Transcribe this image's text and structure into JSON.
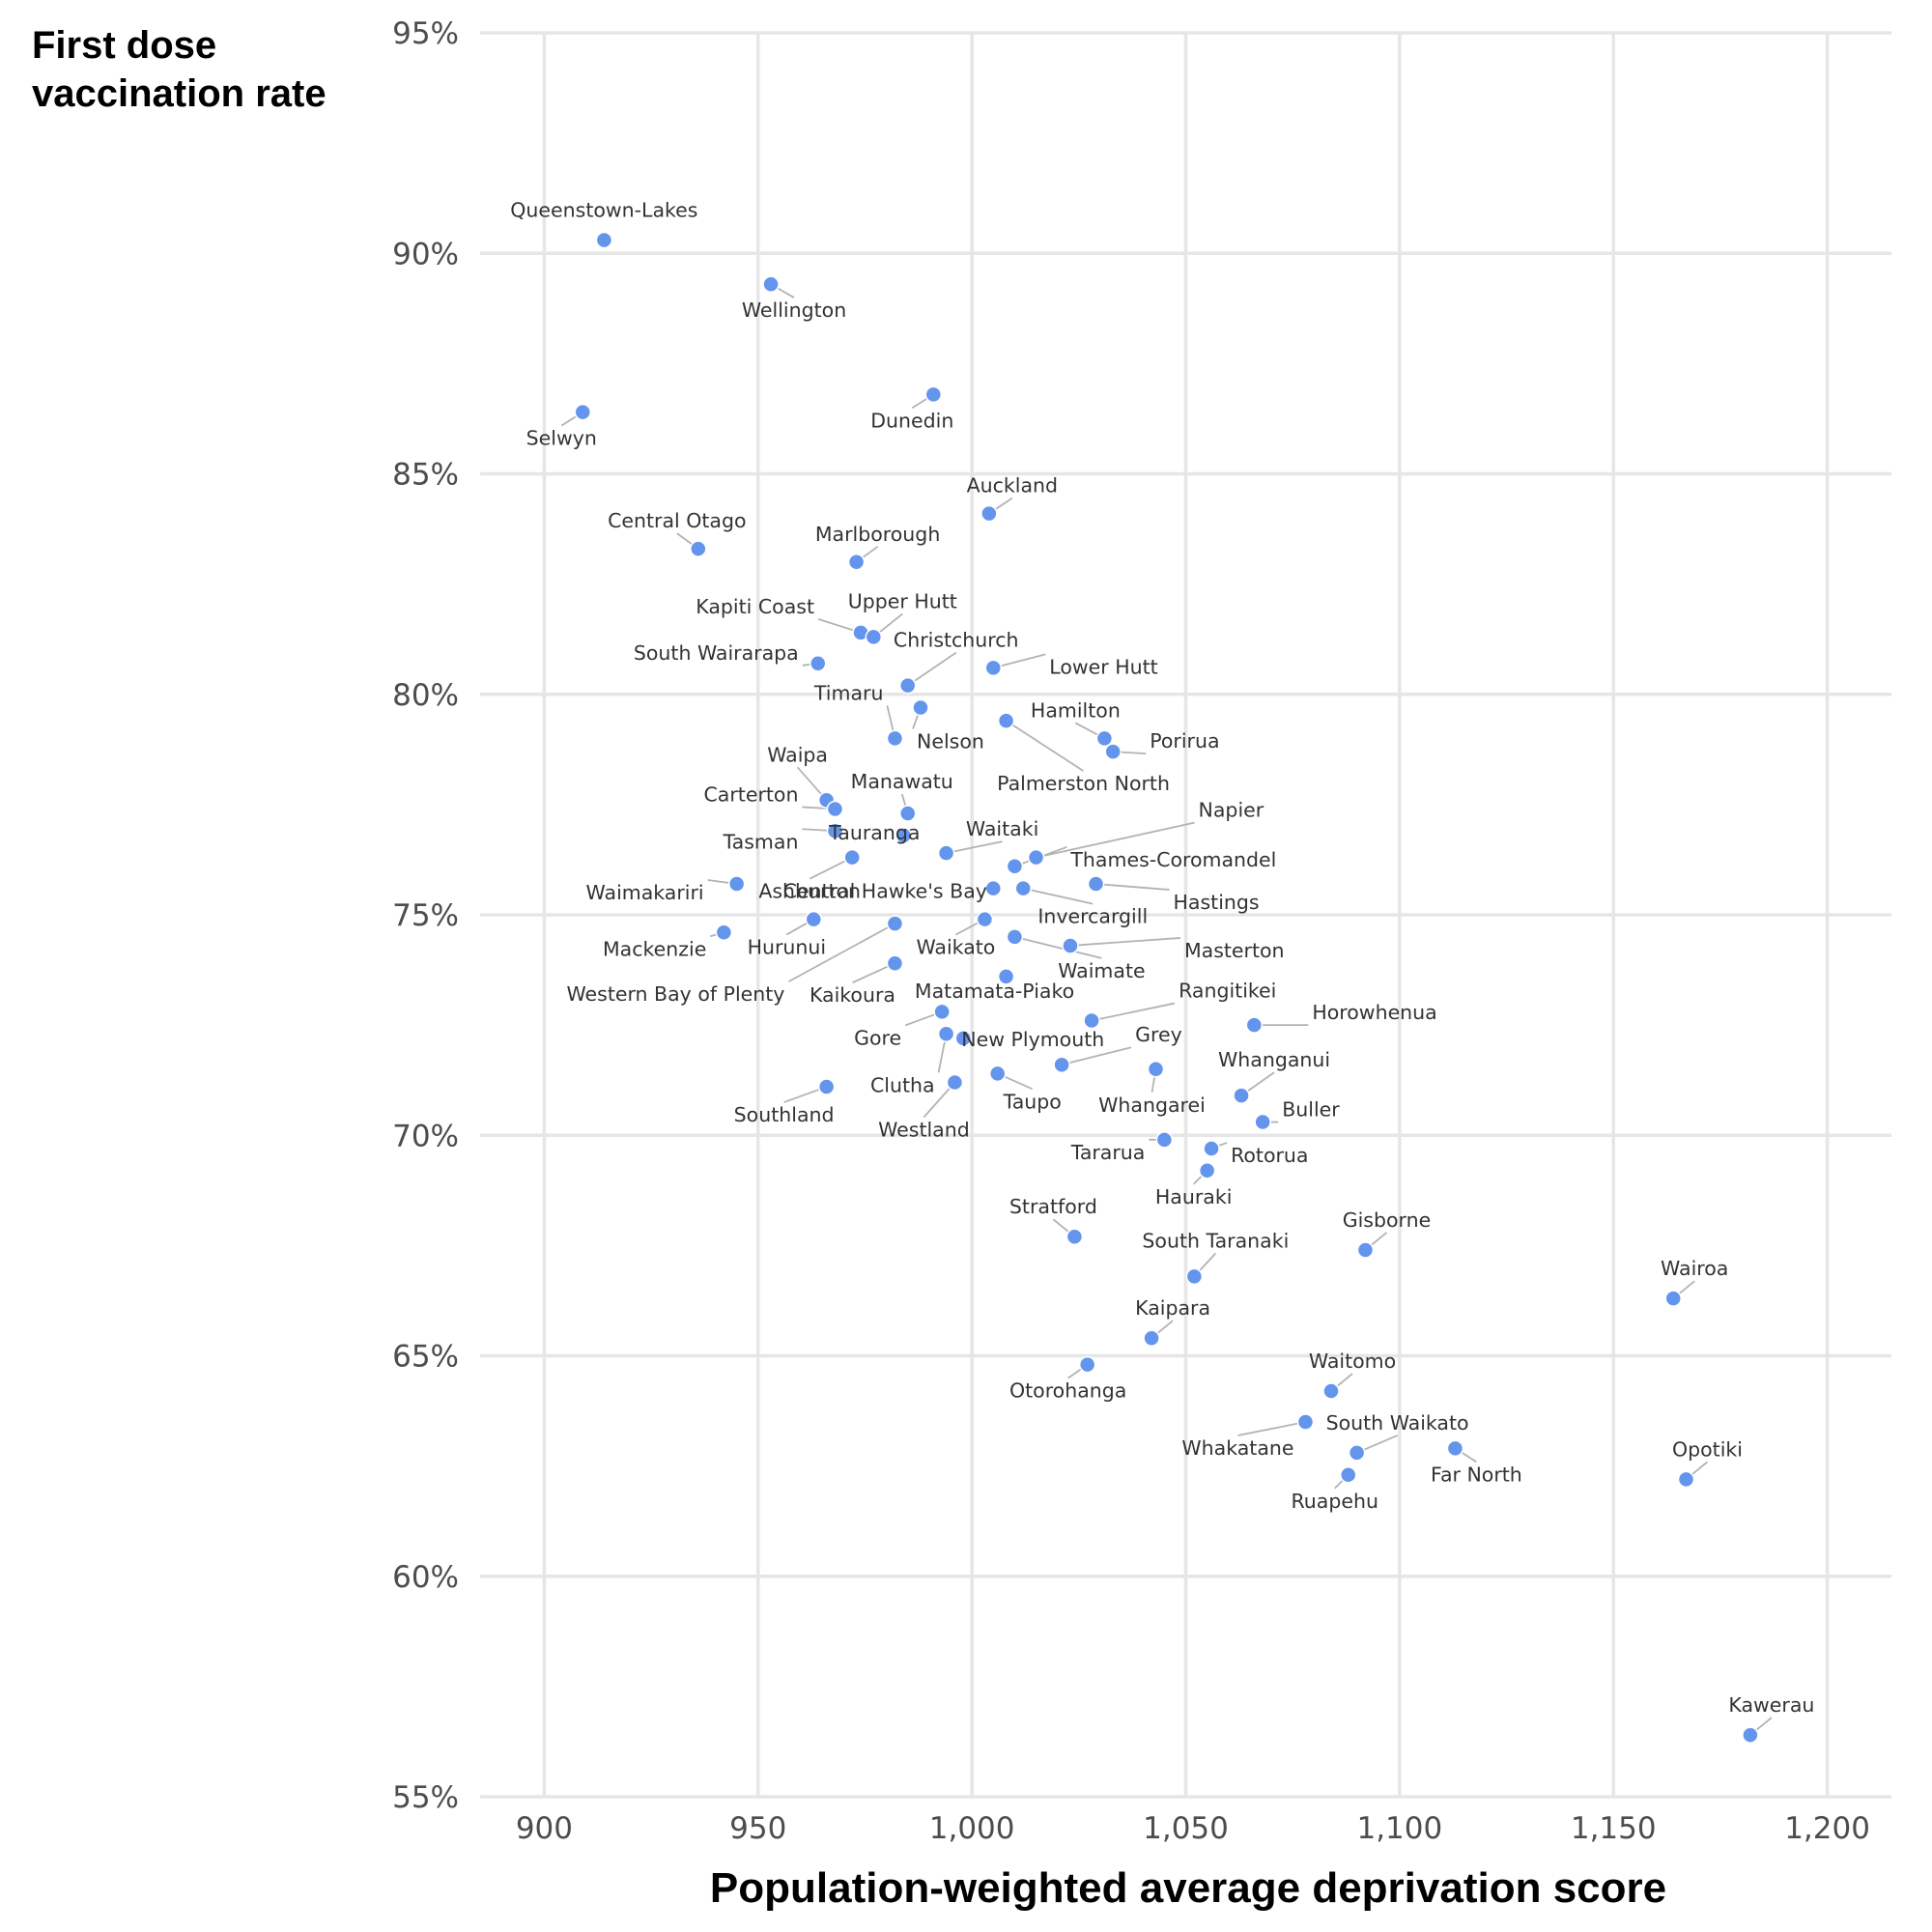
{
  "chart_data": {
    "type": "scatter",
    "title": "",
    "ylabel": "First dose\nvaccination rate",
    "xlabel": "Population-weighted average deprivation score",
    "xlim": [
      885,
      1215
    ],
    "ylim": [
      55,
      95
    ],
    "x_ticks": [
      900,
      950,
      1000,
      1050,
      1100,
      1150,
      1200
    ],
    "x_tick_labels": [
      "900",
      "950",
      "1,000",
      "1,050",
      "1,100",
      "1,150",
      "1,200"
    ],
    "y_ticks": [
      55,
      60,
      65,
      70,
      75,
      80,
      85,
      90,
      95
    ],
    "y_tick_labels": [
      "55%",
      "60%",
      "65%",
      "70%",
      "75%",
      "80%",
      "85%",
      "90%",
      "95%"
    ],
    "grid": true,
    "point_color": "#6495ed",
    "points": [
      {
        "name": "Queenstown-Lakes",
        "x": 914,
        "y": 90.3
      },
      {
        "name": "Wellington",
        "x": 953,
        "y": 89.3
      },
      {
        "name": "Selwyn",
        "x": 909,
        "y": 86.4
      },
      {
        "name": "Dunedin",
        "x": 991,
        "y": 86.8
      },
      {
        "name": "Auckland",
        "x": 1004,
        "y": 84.1
      },
      {
        "name": "Central Otago",
        "x": 936,
        "y": 83.3
      },
      {
        "name": "Marlborough",
        "x": 973,
        "y": 83.0
      },
      {
        "name": "Kapiti Coast",
        "x": 974,
        "y": 81.4
      },
      {
        "name": "Upper Hutt",
        "x": 977,
        "y": 81.3
      },
      {
        "name": "South Wairarapa",
        "x": 964,
        "y": 80.7
      },
      {
        "name": "Christchurch",
        "x": 985,
        "y": 80.2
      },
      {
        "name": "Lower Hutt",
        "x": 1005,
        "y": 80.6
      },
      {
        "name": "Timaru",
        "x": 982,
        "y": 79.0
      },
      {
        "name": "Nelson",
        "x": 988,
        "y": 79.7
      },
      {
        "name": "Hamilton",
        "x": 1031,
        "y": 79.0
      },
      {
        "name": "Porirua",
        "x": 1033,
        "y": 78.7
      },
      {
        "name": "Palmerston North",
        "x": 1008,
        "y": 79.4
      },
      {
        "name": "Waipa",
        "x": 966,
        "y": 77.6
      },
      {
        "name": "Carterton",
        "x": 968,
        "y": 77.4
      },
      {
        "name": "Manawatu",
        "x": 985,
        "y": 77.3
      },
      {
        "name": "Tauranga",
        "x": 984,
        "y": 76.8
      },
      {
        "name": "Tasman",
        "x": 968,
        "y": 76.9
      },
      {
        "name": "Waitaki",
        "x": 994,
        "y": 76.4
      },
      {
        "name": "Napier",
        "x": 1015,
        "y": 76.3
      },
      {
        "name": "Thames-Coromandel",
        "x": 1010,
        "y": 76.1
      },
      {
        "name": "Waimakariri",
        "x": 945,
        "y": 75.7
      },
      {
        "name": "Ashburton",
        "x": 972,
        "y": 76.3
      },
      {
        "name": "Central Hawke's Bay",
        "x": 1005,
        "y": 75.6
      },
      {
        "name": "Hastings",
        "x": 1029,
        "y": 75.7
      },
      {
        "name": "Invercargill",
        "x": 1012,
        "y": 75.6
      },
      {
        "name": "Mackenzie",
        "x": 942,
        "y": 74.6
      },
      {
        "name": "Hurunui",
        "x": 963,
        "y": 74.9
      },
      {
        "name": "Waikato",
        "x": 1003,
        "y": 74.9
      },
      {
        "name": "Masterton",
        "x": 1023,
        "y": 74.3
      },
      {
        "name": "Waimate",
        "x": 1010,
        "y": 74.5
      },
      {
        "name": "Western Bay of Plenty",
        "x": 982,
        "y": 74.8
      },
      {
        "name": "Kaikoura",
        "x": 982,
        "y": 73.9
      },
      {
        "name": "Matamata-Piako",
        "x": 1008,
        "y": 73.6
      },
      {
        "name": "Rangitikei",
        "x": 1028,
        "y": 72.6
      },
      {
        "name": "Horowhenua",
        "x": 1066,
        "y": 72.5
      },
      {
        "name": "Gore",
        "x": 993,
        "y": 72.8
      },
      {
        "name": "New Plymouth",
        "x": 998,
        "y": 72.2
      },
      {
        "name": "Clutha",
        "x": 994,
        "y": 72.3
      },
      {
        "name": "Grey",
        "x": 1021,
        "y": 71.6
      },
      {
        "name": "Whanganui",
        "x": 1063,
        "y": 70.9
      },
      {
        "name": "Southland",
        "x": 966,
        "y": 71.1
      },
      {
        "name": "Westland",
        "x": 996,
        "y": 71.2
      },
      {
        "name": "Taupo",
        "x": 1006,
        "y": 71.4
      },
      {
        "name": "Whangarei",
        "x": 1043,
        "y": 71.5
      },
      {
        "name": "Buller",
        "x": 1068,
        "y": 70.3
      },
      {
        "name": "Tararua",
        "x": 1045,
        "y": 69.9
      },
      {
        "name": "Rotorua",
        "x": 1056,
        "y": 69.7
      },
      {
        "name": "Hauraki",
        "x": 1055,
        "y": 69.2
      },
      {
        "name": "Stratford",
        "x": 1024,
        "y": 67.7
      },
      {
        "name": "Gisborne",
        "x": 1092,
        "y": 67.4
      },
      {
        "name": "South Taranaki",
        "x": 1052,
        "y": 66.8
      },
      {
        "name": "Wairoa",
        "x": 1164,
        "y": 66.3
      },
      {
        "name": "Kaipara",
        "x": 1042,
        "y": 65.4
      },
      {
        "name": "Otorohanga",
        "x": 1027,
        "y": 64.8
      },
      {
        "name": "Waitomo",
        "x": 1084,
        "y": 64.2
      },
      {
        "name": "Whakatane",
        "x": 1078,
        "y": 63.5
      },
      {
        "name": "South Waikato",
        "x": 1090,
        "y": 62.8
      },
      {
        "name": "Far North",
        "x": 1113,
        "y": 62.9
      },
      {
        "name": "Ruapehu",
        "x": 1088,
        "y": 62.3
      },
      {
        "name": "Opotiki",
        "x": 1167,
        "y": 62.2
      },
      {
        "name": "Kawerau",
        "x": 1182,
        "y": 56.4
      }
    ]
  }
}
